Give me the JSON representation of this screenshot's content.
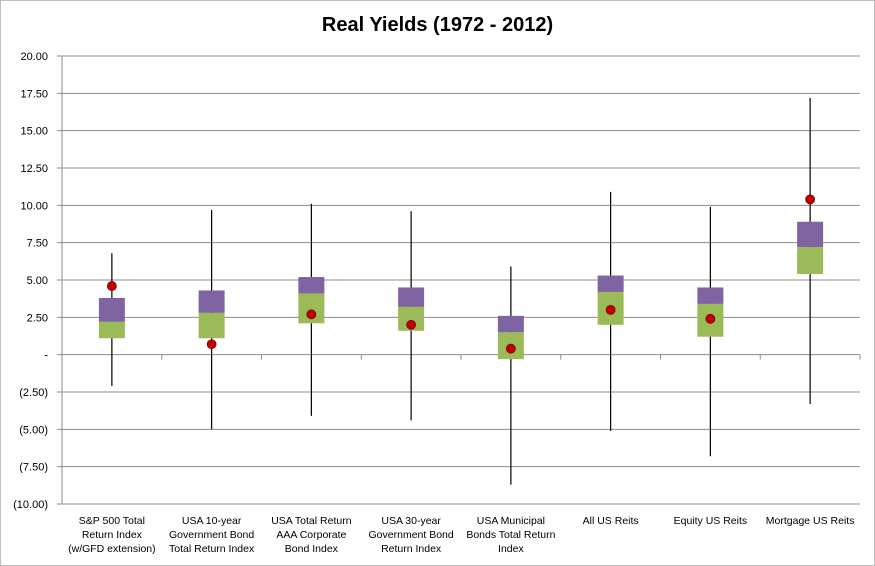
{
  "chart_data": {
    "type": "box",
    "title": "Real Yields (1972 - 2012)",
    "xlabel": "",
    "ylabel": "",
    "ylim": [
      -10,
      20
    ],
    "y_ticks": [
      20,
      17.5,
      15,
      12.5,
      10,
      7.5,
      5,
      2.5,
      0,
      -2.5,
      -5,
      -7.5,
      -10
    ],
    "y_tick_labels": [
      "20.00",
      "17.50",
      "15.00",
      "12.50",
      "10.00",
      "7.50",
      "5.00",
      "2.50",
      "-",
      "(2.50)",
      "(5.00)",
      "(7.50)",
      "(10.00)"
    ],
    "grid": true,
    "colors": {
      "upper_box": "#8064a2",
      "lower_box": "#9bbb59",
      "marker": "#c00000",
      "marker_edge": "#7f0000",
      "grid": "#8c8c8c"
    },
    "categories": [
      [
        "S&P 500 Total",
        "Return Index",
        "(w/GFD extension)"
      ],
      [
        "USA 10-year",
        "Government Bond",
        "Total Return Index"
      ],
      [
        "USA Total Return",
        "AAA Corporate",
        "Bond Index"
      ],
      [
        "USA 30-year",
        "Government Bond",
        "Return Index"
      ],
      [
        "USA Municipal",
        "Bonds Total Return",
        "Index"
      ],
      [
        "All US Reits"
      ],
      [
        "Equity  US Reits"
      ],
      [
        "Mortgage US Reits"
      ]
    ],
    "boxes": [
      {
        "min": -2.1,
        "q1": 1.1,
        "median": 2.2,
        "q3": 3.8,
        "max": 6.8,
        "marker": 4.6
      },
      {
        "min": -5.0,
        "q1": 1.1,
        "median": 2.8,
        "q3": 4.3,
        "max": 9.7,
        "marker": 0.7
      },
      {
        "min": -4.1,
        "q1": 2.1,
        "median": 4.1,
        "q3": 5.2,
        "max": 10.1,
        "marker": 2.7
      },
      {
        "min": -4.4,
        "q1": 1.6,
        "median": 3.2,
        "q3": 4.5,
        "max": 9.6,
        "marker": 2.0
      },
      {
        "min": -8.7,
        "q1": -0.3,
        "median": 1.5,
        "q3": 2.6,
        "max": 5.9,
        "marker": 0.4
      },
      {
        "min": -5.1,
        "q1": 2.0,
        "median": 4.2,
        "q3": 5.3,
        "max": 10.9,
        "marker": 3.0
      },
      {
        "min": -6.8,
        "q1": 1.2,
        "median": 3.4,
        "q3": 4.5,
        "max": 9.9,
        "marker": 2.4
      },
      {
        "min": -3.3,
        "q1": 5.4,
        "median": 7.2,
        "q3": 8.9,
        "max": 17.2,
        "marker": 10.4
      }
    ]
  }
}
